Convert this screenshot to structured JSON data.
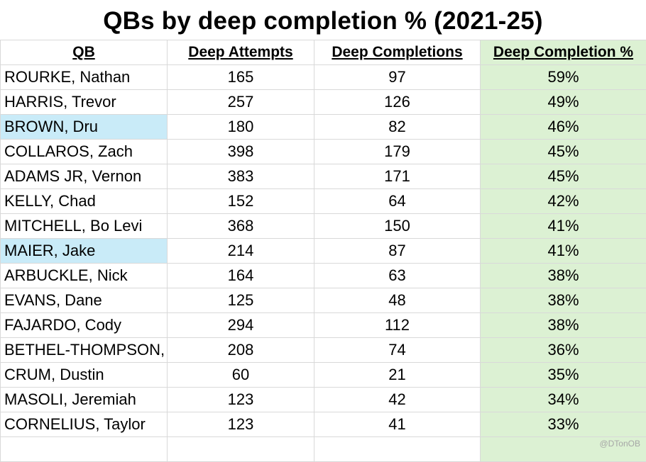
{
  "title": "QBs by deep completion % (2021-25)",
  "watermark": "@DTonOB",
  "colors": {
    "highlight_row_name": "#c9ebf8",
    "pct_column": "#dcf1d3",
    "gridline": "#d9d9d9"
  },
  "chart_data": {
    "type": "table",
    "title": "QBs by deep completion % (2021-25)",
    "columns": [
      "QB",
      "Deep Attempts",
      "Deep Completions",
      "Deep Completion %"
    ],
    "rows": [
      {
        "qb": "ROURKE, Nathan",
        "attempts": "165",
        "completions": "97",
        "pct": "59%",
        "highlight": false
      },
      {
        "qb": "HARRIS, Trevor",
        "attempts": "257",
        "completions": "126",
        "pct": "49%",
        "highlight": false
      },
      {
        "qb": "BROWN, Dru",
        "attempts": "180",
        "completions": "82",
        "pct": "46%",
        "highlight": true
      },
      {
        "qb": "COLLAROS, Zach",
        "attempts": "398",
        "completions": "179",
        "pct": "45%",
        "highlight": false
      },
      {
        "qb": "ADAMS JR, Vernon",
        "attempts": "383",
        "completions": "171",
        "pct": "45%",
        "highlight": false
      },
      {
        "qb": "KELLY, Chad",
        "attempts": "152",
        "completions": "64",
        "pct": "42%",
        "highlight": false
      },
      {
        "qb": "MITCHELL, Bo Levi",
        "attempts": "368",
        "completions": "150",
        "pct": "41%",
        "highlight": false
      },
      {
        "qb": "MAIER, Jake",
        "attempts": "214",
        "completions": "87",
        "pct": "41%",
        "highlight": true
      },
      {
        "qb": "ARBUCKLE, Nick",
        "attempts": "164",
        "completions": "63",
        "pct": "38%",
        "highlight": false
      },
      {
        "qb": "EVANS, Dane",
        "attempts": "125",
        "completions": "48",
        "pct": "38%",
        "highlight": false
      },
      {
        "qb": "FAJARDO, Cody",
        "attempts": "294",
        "completions": "112",
        "pct": "38%",
        "highlight": false
      },
      {
        "qb": "BETHEL-THOMPSON,",
        "attempts": "208",
        "completions": "74",
        "pct": "36%",
        "highlight": false
      },
      {
        "qb": "CRUM, Dustin",
        "attempts": "60",
        "completions": "21",
        "pct": "35%",
        "highlight": false
      },
      {
        "qb": "MASOLI, Jeremiah",
        "attempts": "123",
        "completions": "42",
        "pct": "34%",
        "highlight": false
      },
      {
        "qb": "CORNELIUS, Taylor",
        "attempts": "123",
        "completions": "41",
        "pct": "33%",
        "highlight": false
      }
    ]
  }
}
